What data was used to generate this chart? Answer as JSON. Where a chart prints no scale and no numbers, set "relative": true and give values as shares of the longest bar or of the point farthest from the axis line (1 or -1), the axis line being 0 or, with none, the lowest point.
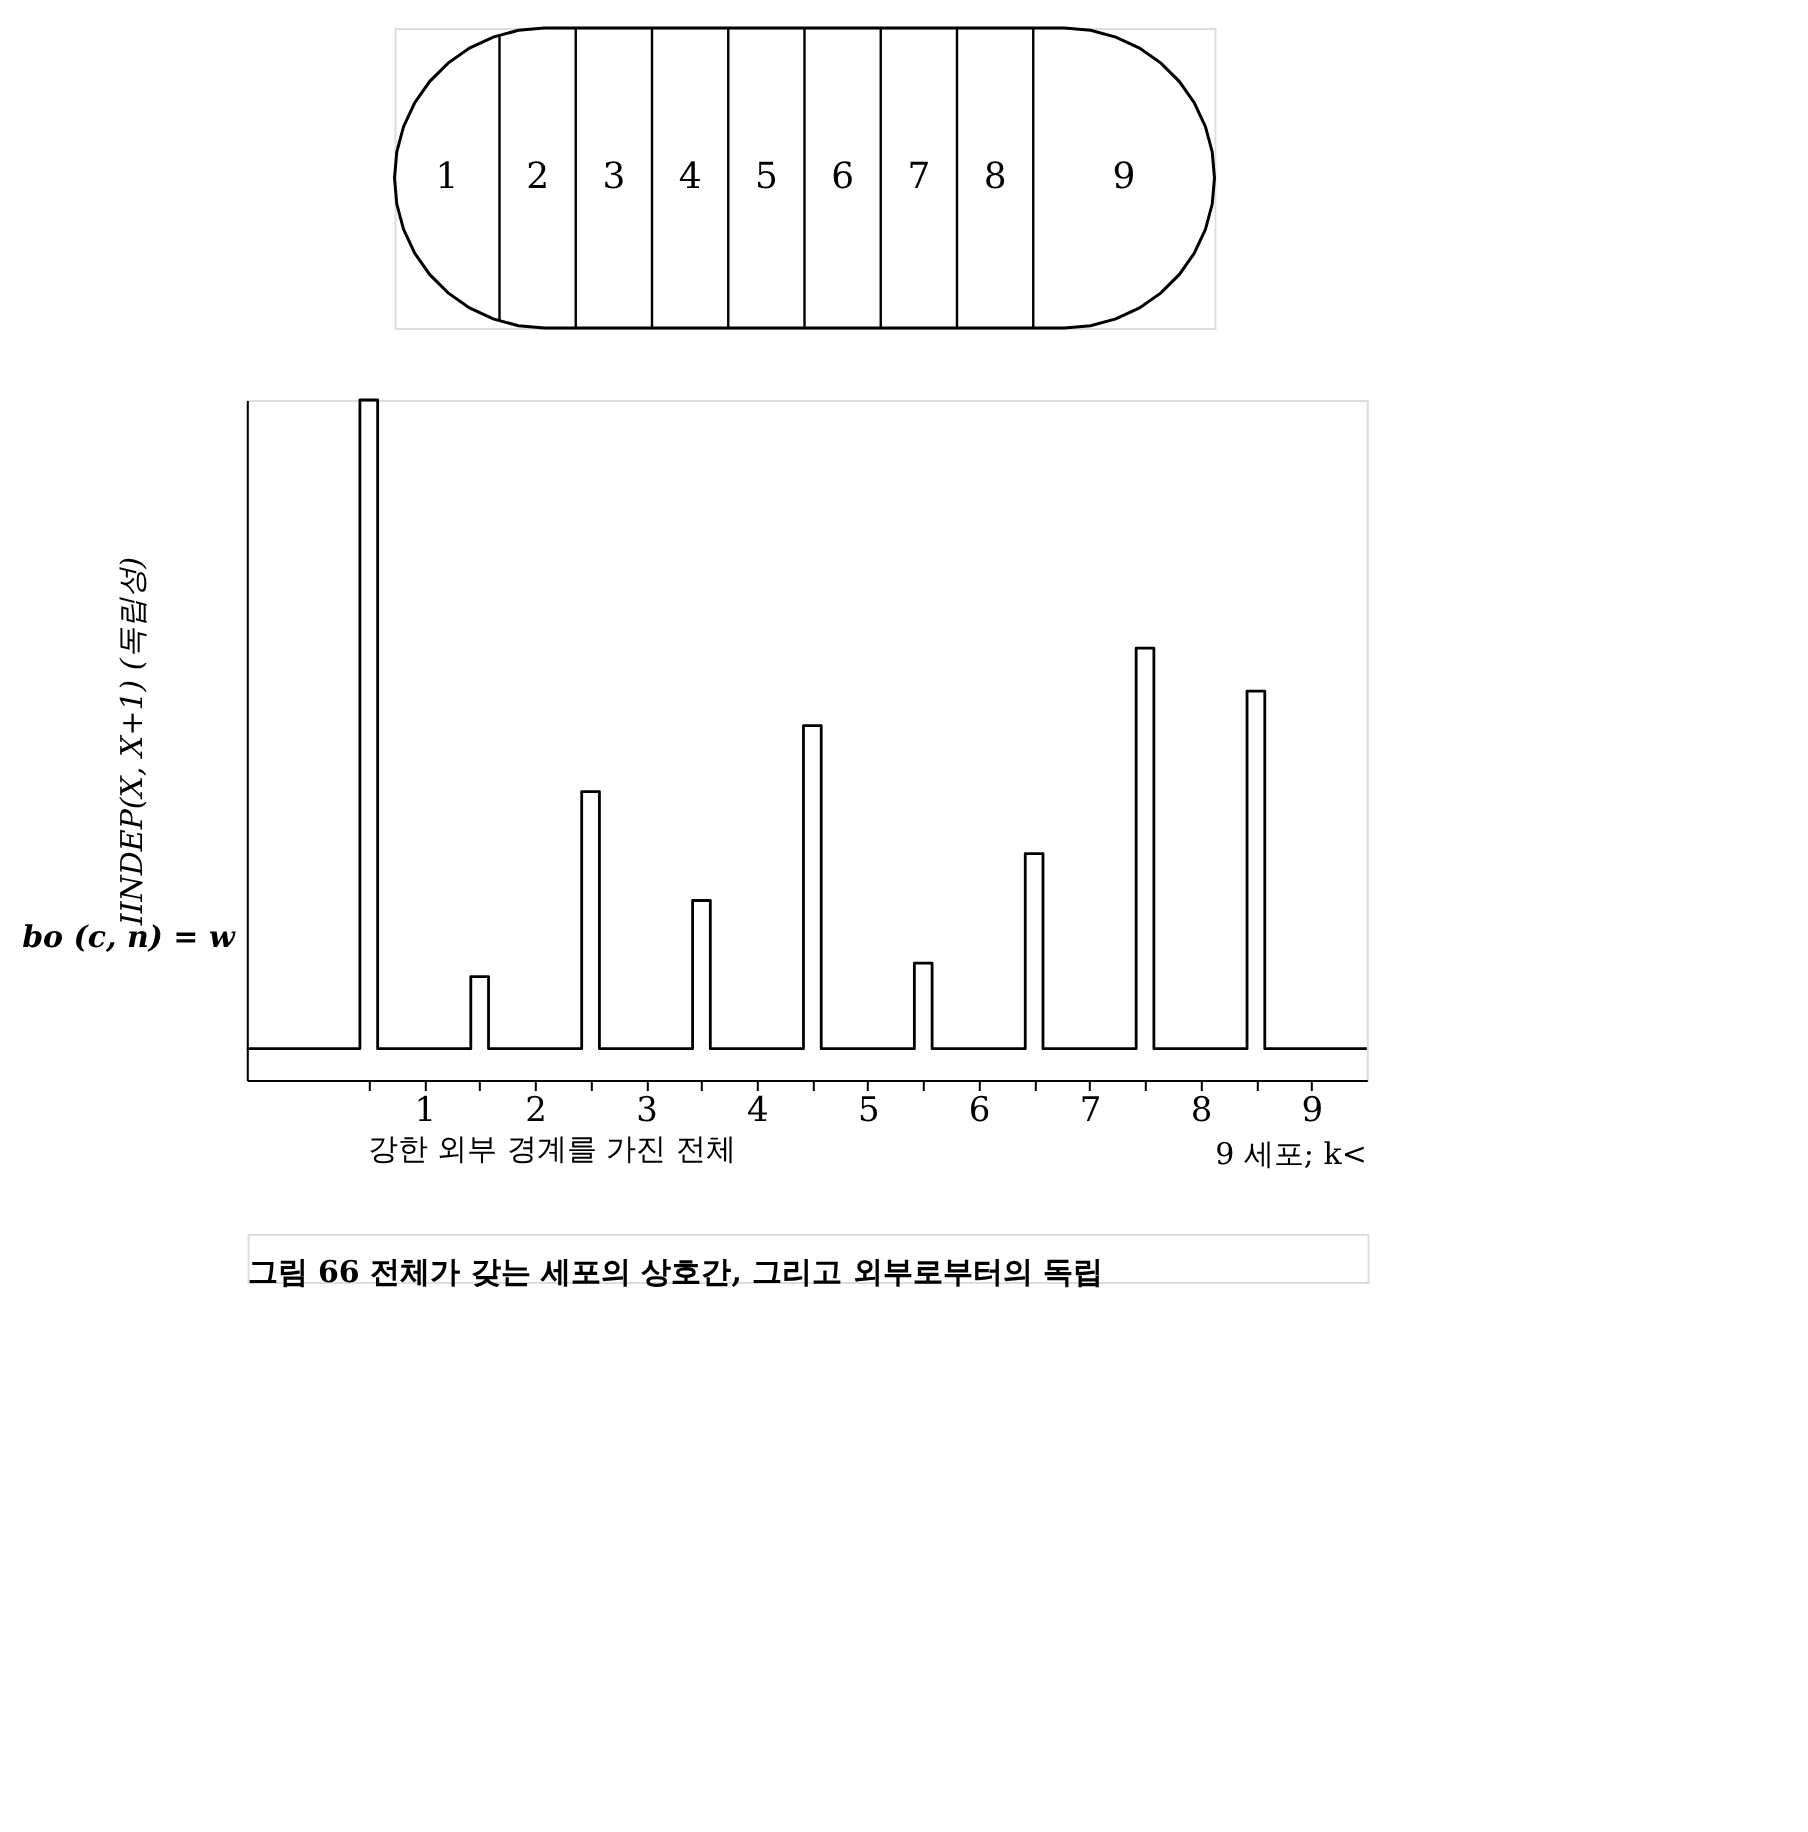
{
  "chart_data": {
    "type": "line",
    "relative": true,
    "color": "#000000",
    "marker": "none",
    "line_style": "solid",
    "ylabel": "IINDEP(X, X+1) (독립성)",
    "xlabel": "강한 외부 경계를 가진 전체",
    "xlim": [
      -0.6,
      9.5
    ],
    "xticks": [
      {
        "value": 0.5,
        "label": null
      },
      1,
      {
        "value": 1.5,
        "label": null
      },
      2,
      {
        "value": 2.5,
        "label": null
      },
      3,
      {
        "value": 3.5,
        "label": null
      },
      4,
      {
        "value": 4.5,
        "label": null
      },
      5,
      {
        "value": 5.5,
        "label": null
      },
      6,
      {
        "value": 6.5,
        "label": null
      },
      7,
      {
        "value": 7.5,
        "label": null
      },
      8,
      {
        "value": 8.5,
        "label": null
      },
      9
    ],
    "x": [
      -0.6,
      0.42,
      0.42,
      0.58,
      0.58,
      1.42,
      1.42,
      1.58,
      1.58,
      2.42,
      2.42,
      2.58,
      2.58,
      3.42,
      3.42,
      3.58,
      3.58,
      4.42,
      4.42,
      4.58,
      4.58,
      5.42,
      5.42,
      5.58,
      5.58,
      6.42,
      6.42,
      6.58,
      6.58,
      7.42,
      7.42,
      7.58,
      7.58,
      8.42,
      8.42,
      8.58,
      8.58,
      9.5
    ],
    "values": [
      0.046,
      0.046,
      1.0,
      1.0,
      0.046,
      0.046,
      0.152,
      0.152,
      0.046,
      0.046,
      0.424,
      0.424,
      0.046,
      0.046,
      0.264,
      0.264,
      0.046,
      0.046,
      0.521,
      0.521,
      0.046,
      0.046,
      0.172,
      0.172,
      0.046,
      0.046,
      0.333,
      0.333,
      0.046,
      0.046,
      0.635,
      0.635,
      0.046,
      0.046,
      0.572,
      0.572,
      0.046,
      0.046
    ],
    "annotations": [
      "bo (c, n) = w",
      "9 세포; k<",
      "그림 66  전체가 갖는 세포의 상호간, 그리고 외부로부터의 독립",
      "1",
      "2",
      "3",
      "4",
      "5",
      "6",
      "7",
      "8",
      "9"
    ]
  }
}
